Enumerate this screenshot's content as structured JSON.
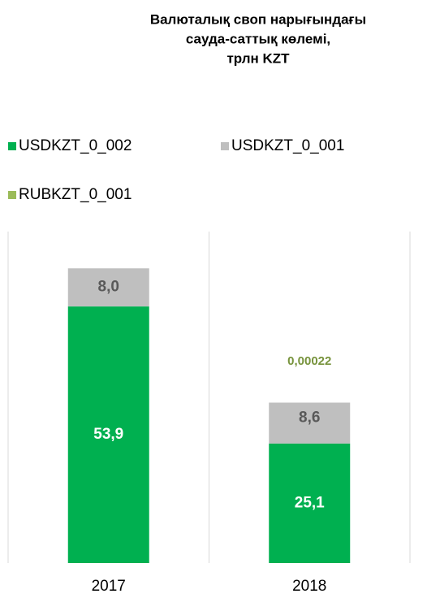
{
  "chart_data": {
    "type": "stacked_bar",
    "title": [
      "Валюталық своп нарығындағы",
      "сауда-саттық көлемі,",
      "трлн KZT"
    ],
    "categories": [
      "2017",
      "2018"
    ],
    "series": [
      {
        "name": "USDKZT_0_002",
        "color": "#00b050",
        "values": [
          53.9,
          25.1
        ],
        "value_labels": [
          "53,9",
          "25,1"
        ]
      },
      {
        "name": "USDKZT_0_001",
        "color": "#bfbfbf",
        "values": [
          8.0,
          8.6
        ],
        "value_labels": [
          "8,0",
          "8,6"
        ]
      },
      {
        "name": "RUBKZT_0_001",
        "color": "#9bbb59",
        "values": [
          null,
          0.00022
        ],
        "value_labels": [
          null,
          "0,00022"
        ]
      }
    ]
  }
}
